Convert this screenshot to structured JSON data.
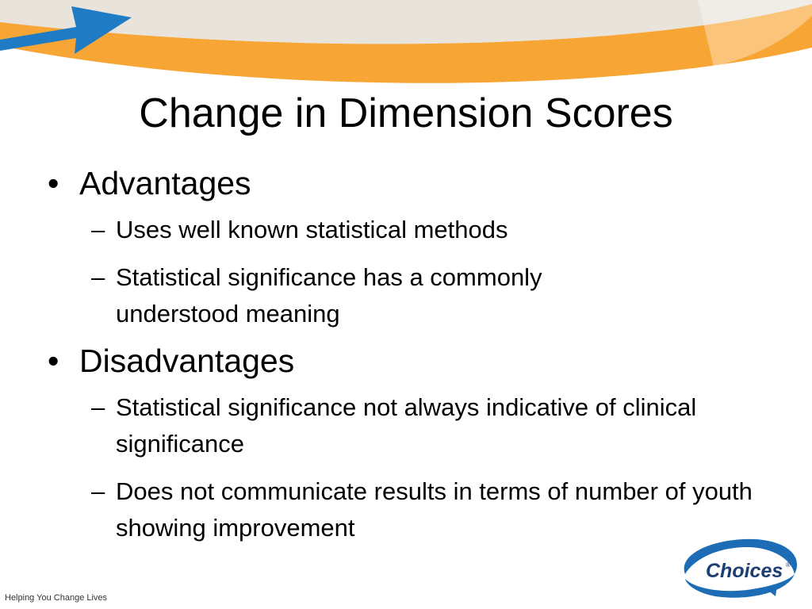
{
  "slide": {
    "title": "Change in Dimension Scores",
    "sections": [
      {
        "heading": "Advantages",
        "items": [
          "Uses well known statistical methods",
          "Statistical significance has a commonly understood meaning"
        ]
      },
      {
        "heading": "Disadvantages",
        "items": [
          "Statistical significance not always indicative of clinical significance",
          "Does not communicate results in terms of number of youth showing improvement"
        ]
      }
    ],
    "bullet_char": "•",
    "dash_char": "–",
    "footer": "Helping You Change Lives",
    "logo_text": "Choices",
    "logo_mark": "®"
  },
  "colors": {
    "banner_orange": "#F7A534",
    "banner_beige": "#E8E4DB",
    "arrow_blue": "#1F7CC4",
    "logo_blue": "#1C6DB5"
  }
}
